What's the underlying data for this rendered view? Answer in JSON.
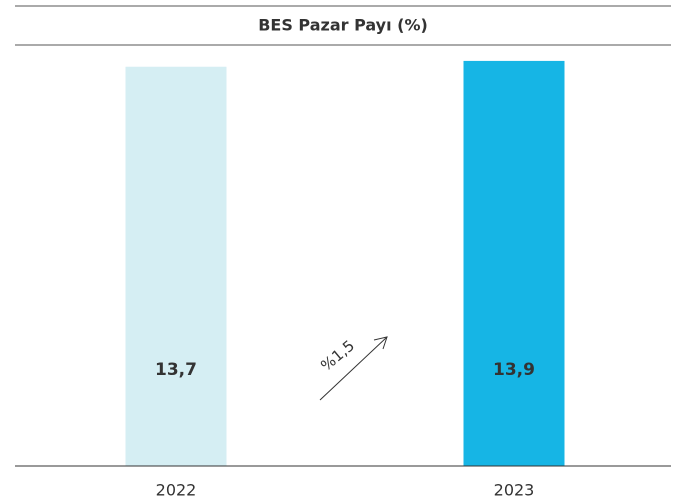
{
  "chart_data": {
    "type": "bar",
    "title": "BES Pazar Payı (%)",
    "categories": [
      "2022",
      "2023"
    ],
    "values": [
      13.7,
      13.9
    ],
    "value_labels": [
      "13,7",
      "13,9"
    ],
    "colors": [
      "#d5eef3",
      "#16b5e5"
    ],
    "ylim": [
      0,
      14
    ],
    "annotation": "%1,5"
  }
}
